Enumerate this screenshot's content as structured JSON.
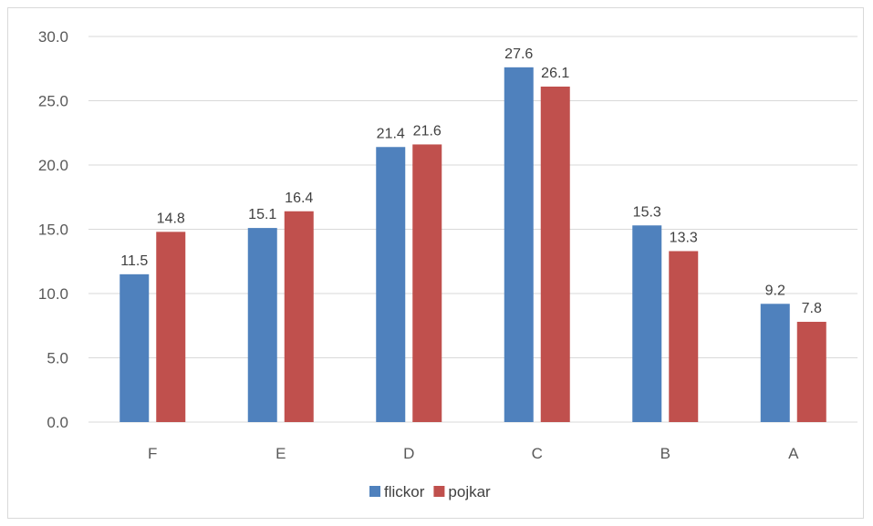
{
  "chart_data": {
    "type": "bar",
    "title": "",
    "xlabel": "",
    "ylabel": "",
    "categories": [
      "F",
      "E",
      "D",
      "C",
      "B",
      "A"
    ],
    "series": [
      {
        "name": "flickor",
        "color": "#4F81BD",
        "values": [
          11.5,
          15.1,
          21.4,
          27.6,
          15.3,
          9.2
        ]
      },
      {
        "name": "pojkar",
        "color": "#C0504D",
        "values": [
          14.8,
          16.4,
          21.6,
          26.1,
          13.3,
          7.8
        ]
      }
    ],
    "ylim": [
      0,
      30
    ],
    "yticks": [
      "0.0",
      "5.0",
      "10.0",
      "15.0",
      "20.0",
      "25.0",
      "30.0"
    ],
    "grid": true,
    "legend_position": "bottom",
    "data_labels": true
  }
}
